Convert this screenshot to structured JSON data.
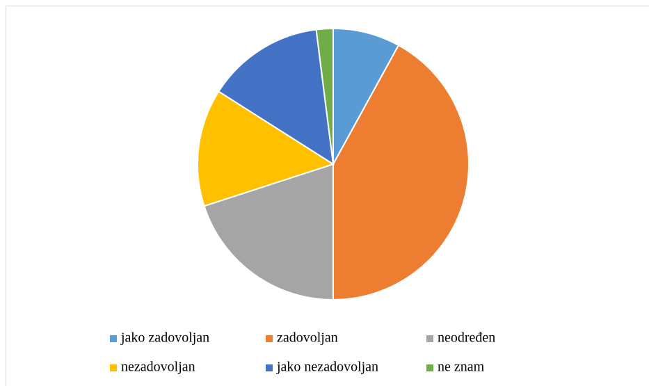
{
  "chart_data": {
    "type": "pie",
    "categories": [
      "jako zadovoljan",
      "zadovoljan",
      "neodređen",
      "nezadovoljan",
      "jako nezadovoljan",
      "ne znam"
    ],
    "values": [
      8,
      42,
      20,
      14,
      14,
      2
    ],
    "colors": [
      "#5b9bd5",
      "#ed7d31",
      "#a5a5a5",
      "#ffc000",
      "#4472c4",
      "#70ad47"
    ],
    "legend": "bottom"
  }
}
